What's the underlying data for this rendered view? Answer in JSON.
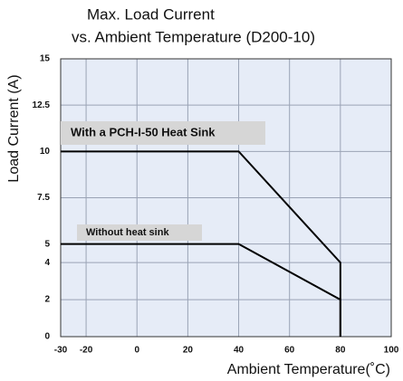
{
  "chart_data": {
    "type": "line",
    "title": [
      "Max. Load Current",
      "vs. Ambient Temperature  (D200-10)"
    ],
    "xlabel": "Ambient Temperature(˚C)",
    "ylabel": "Load  Current (A)",
    "series": [
      {
        "name": "With a PCH-I-50 Heat Sink",
        "color": "#000000",
        "x": [
          -30,
          40,
          80,
          80
        ],
        "values": [
          10,
          10,
          4,
          0
        ]
      },
      {
        "name": "Without heat sink",
        "color": "#000000",
        "x": [
          -30,
          40,
          80,
          80
        ],
        "values": [
          5,
          5,
          2,
          0
        ]
      }
    ],
    "xlim": [
      -30,
      100
    ],
    "ylim": [
      0,
      15
    ],
    "xticks": [
      -30,
      -20,
      0,
      20,
      40,
      60,
      80,
      100
    ],
    "yticks": [
      0,
      2,
      4,
      5,
      7.5,
      10,
      12.5,
      15
    ],
    "grid": true
  }
}
